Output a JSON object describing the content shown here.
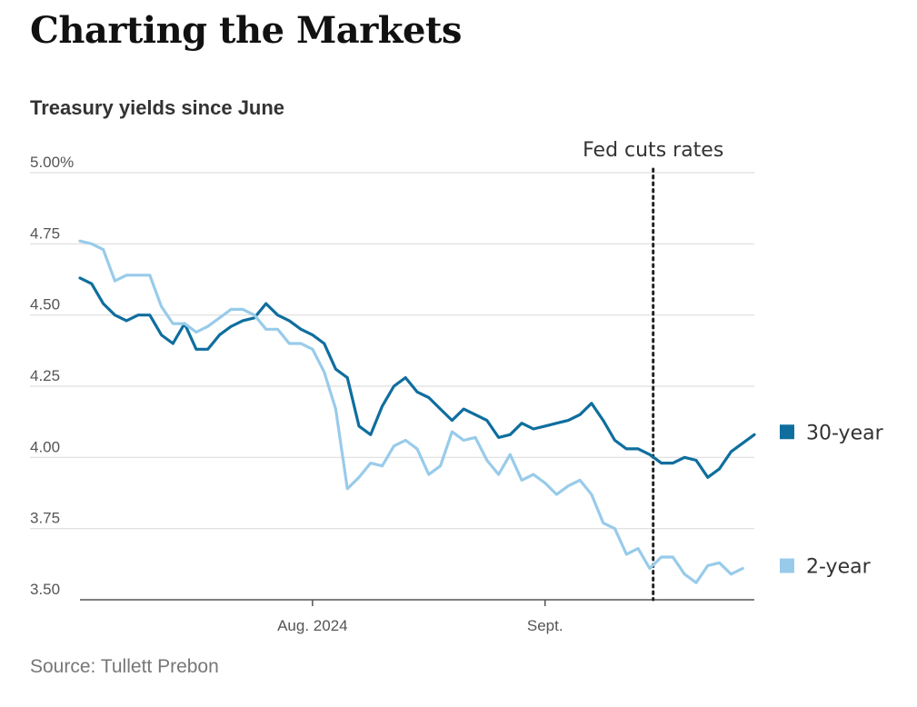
{
  "headline": "Charting the Markets",
  "source": "Source: Tullett Prebon",
  "chart_data": {
    "type": "line",
    "title": "Treasury yields since June",
    "xlabel": "",
    "ylabel": "",
    "ylim": [
      3.5,
      5.0
    ],
    "y_ticks": [
      5.0,
      4.75,
      4.5,
      4.25,
      4.0,
      3.75,
      3.5
    ],
    "y_tick_labels": [
      "5.00%",
      "4.75",
      "4.50",
      "4.25",
      "4.00",
      "3.75",
      "3.50"
    ],
    "x_ticks": [
      {
        "index": 20,
        "label": "Aug. 2024"
      },
      {
        "index": 40,
        "label": "Sept."
      }
    ],
    "grid": true,
    "annotation": {
      "label": "Fed cuts rates",
      "index": 49.3,
      "style": "dotted"
    },
    "series": [
      {
        "name": "30-year",
        "color": "#0f6e9e",
        "values": [
          4.63,
          4.61,
          4.54,
          4.5,
          4.48,
          4.5,
          4.5,
          4.43,
          4.4,
          4.47,
          4.38,
          4.38,
          4.43,
          4.46,
          4.48,
          4.49,
          4.54,
          4.5,
          4.48,
          4.45,
          4.43,
          4.4,
          4.31,
          4.28,
          4.11,
          4.08,
          4.18,
          4.25,
          4.28,
          4.23,
          4.21,
          4.17,
          4.13,
          4.17,
          4.15,
          4.13,
          4.07,
          4.08,
          4.12,
          4.1,
          4.11,
          4.12,
          4.13,
          4.15,
          4.19,
          4.13,
          4.06,
          4.03,
          4.03,
          4.01,
          3.98,
          3.98,
          4.0,
          3.99,
          3.93,
          3.96,
          4.02,
          4.05,
          4.08
        ]
      },
      {
        "name": "2-year",
        "color": "#98cbea",
        "values": [
          4.76,
          4.75,
          4.73,
          4.62,
          4.64,
          4.64,
          4.64,
          4.53,
          4.47,
          4.47,
          4.44,
          4.46,
          4.49,
          4.52,
          4.52,
          4.5,
          4.45,
          4.45,
          4.4,
          4.4,
          4.38,
          4.3,
          4.17,
          3.89,
          3.93,
          3.98,
          3.97,
          4.04,
          4.06,
          4.03,
          3.94,
          3.97,
          4.09,
          4.06,
          4.07,
          3.99,
          3.94,
          4.01,
          3.92,
          3.94,
          3.91,
          3.87,
          3.9,
          3.92,
          3.87,
          3.77,
          3.75,
          3.66,
          3.68,
          3.61,
          3.65,
          3.65,
          3.59,
          3.56,
          3.62,
          3.63,
          3.59,
          3.61
        ]
      }
    ]
  }
}
